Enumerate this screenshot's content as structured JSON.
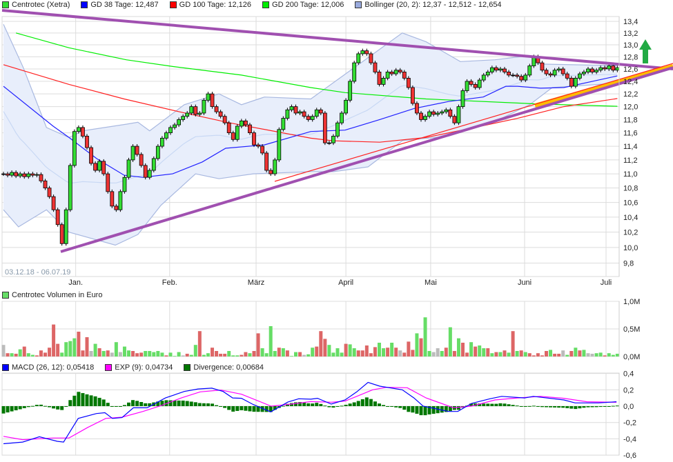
{
  "legend": {
    "price": [
      {
        "label": "Centrotec (Xetra)",
        "color": "#33dd33"
      },
      {
        "label": "GD 38 Tage: 12,487",
        "color": "#0000ff"
      },
      {
        "label": "GD 100 Tage: 12,126",
        "color": "#ff0000"
      },
      {
        "label": "GD 200 Tage: 12,006",
        "color": "#00ee00"
      },
      {
        "label": "Bollinger (20, 2): 12,37 - 12,512 - 12,654",
        "color": "#99aadd"
      }
    ],
    "volume": {
      "label": "Centrotec Volumen in Euro",
      "color": "#66dd66"
    },
    "macd": [
      {
        "label": "MACD (26, 12): 0,05418",
        "color": "#0000ff"
      },
      {
        "label": "EXP (9): 0,04734",
        "color": "#ff00ff"
      },
      {
        "label": "Divergence: 0,00684",
        "color": "#007700"
      }
    ]
  },
  "date_range": "03.12.18 - 06.07.19",
  "months": [
    {
      "label": "Jan.",
      "day": 17.3
    },
    {
      "label": "Feb.",
      "day": 39.8
    },
    {
      "label": "März",
      "day": 60.5
    },
    {
      "label": "April",
      "day": 82
    },
    {
      "label": "Mai",
      "day": 102.3
    },
    {
      "label": "Juni",
      "day": 124.8
    },
    {
      "label": "Juli",
      "day": 144.3
    }
  ],
  "colors": {
    "up": "#33dd33",
    "down": "#ee3333",
    "flat": "#bbbbbb",
    "trendline": "#a050b0",
    "signal_arrow": "#22aa44",
    "channel_fill": "#ffbb00"
  },
  "chart_data": [
    {
      "type": "candlestick",
      "scale": "log",
      "ylim": [
        9.8,
        13.4
      ],
      "y_ticks": [
        "13,4",
        "13,2",
        "13,0",
        "12,8",
        "12,6",
        "12,4",
        "12,2",
        "12,0",
        "11,8",
        "11,6",
        "11,4",
        "11,2",
        "11,0",
        "10,8",
        "10,6",
        "10,4",
        "10,2",
        "10,0",
        "9,8"
      ],
      "y_tick_values": [
        13.4,
        13.2,
        13.0,
        12.8,
        12.6,
        12.4,
        12.2,
        12.0,
        11.8,
        11.6,
        11.4,
        11.2,
        11.0,
        10.8,
        10.6,
        10.4,
        10.2,
        10.0,
        9.8
      ],
      "grid": true,
      "close": [
        11.0,
        10.98,
        11.02,
        10.97,
        11.0,
        10.96,
        11.0,
        10.98,
        10.99,
        10.9,
        10.8,
        10.68,
        10.5,
        10.3,
        10.05,
        10.5,
        11.12,
        11.62,
        11.68,
        11.55,
        11.38,
        11.15,
        11.05,
        11.18,
        11.0,
        10.75,
        10.55,
        10.5,
        10.75,
        10.95,
        11.2,
        11.4,
        11.28,
        11.12,
        10.95,
        11.05,
        11.22,
        11.4,
        11.52,
        11.6,
        11.68,
        11.72,
        11.8,
        11.85,
        11.9,
        12.0,
        11.88,
        11.9,
        12.1,
        12.2,
        12.0,
        11.92,
        11.85,
        11.75,
        11.6,
        11.5,
        11.7,
        11.78,
        11.72,
        11.6,
        11.42,
        11.4,
        11.3,
        11.05,
        11.0,
        11.2,
        11.65,
        11.82,
        11.95,
        12.0,
        11.9,
        11.92,
        11.85,
        11.8,
        11.85,
        11.95,
        11.9,
        11.45,
        11.45,
        11.55,
        11.75,
        11.9,
        12.1,
        12.4,
        12.7,
        12.85,
        12.9,
        12.85,
        12.7,
        12.55,
        12.35,
        12.45,
        12.55,
        12.52,
        12.58,
        12.55,
        12.45,
        12.3,
        12.05,
        11.9,
        11.8,
        11.85,
        11.92,
        11.88,
        11.9,
        11.92,
        11.95,
        11.85,
        11.75,
        12.0,
        12.25,
        12.4,
        12.35,
        12.3,
        12.42,
        12.5,
        12.55,
        12.62,
        12.58,
        12.6,
        12.55,
        12.5,
        12.5,
        12.48,
        12.42,
        12.5,
        12.65,
        12.8,
        12.7,
        12.58,
        12.52,
        12.5,
        12.58,
        12.6,
        12.52,
        12.45,
        12.32,
        12.45,
        12.52,
        12.55,
        12.6,
        12.55,
        12.58,
        12.62,
        12.6,
        12.65,
        12.58,
        12.62
      ],
      "gd38": [
        [
          0,
          12.32
        ],
        [
          11.9,
          11.7
        ],
        [
          15.7,
          11.53
        ],
        [
          22.3,
          11.22
        ],
        [
          28.9,
          10.98
        ],
        [
          33.4,
          10.95
        ],
        [
          40.5,
          11.0
        ],
        [
          47.6,
          11.17
        ],
        [
          53.2,
          11.37
        ],
        [
          62.5,
          11.42
        ],
        [
          73.6,
          11.62
        ],
        [
          81.8,
          11.64
        ],
        [
          90.1,
          11.8
        ],
        [
          98.3,
          11.97
        ],
        [
          106.6,
          12.08
        ],
        [
          114.9,
          12.15
        ],
        [
          120.3,
          12.32
        ],
        [
          123.1,
          12.32
        ],
        [
          128.6,
          12.29
        ],
        [
          134.2,
          12.3
        ],
        [
          147,
          12.487
        ]
      ],
      "gd100": [
        [
          0,
          12.67
        ],
        [
          15.7,
          12.35
        ],
        [
          28.9,
          12.12
        ],
        [
          42.1,
          11.92
        ],
        [
          54.2,
          11.75
        ],
        [
          73.6,
          11.52
        ],
        [
          79,
          11.48
        ],
        [
          90.1,
          11.46
        ],
        [
          101.2,
          11.53
        ],
        [
          112.1,
          11.67
        ],
        [
          123.1,
          11.82
        ],
        [
          134.2,
          12.0
        ],
        [
          147,
          12.126
        ]
      ],
      "gd200": [
        [
          3,
          13.2
        ],
        [
          15.7,
          12.95
        ],
        [
          29.4,
          12.75
        ],
        [
          40.5,
          12.64
        ],
        [
          57,
          12.5
        ],
        [
          73.6,
          12.3
        ],
        [
          81.8,
          12.22
        ],
        [
          101.2,
          12.12
        ],
        [
          128.6,
          12.04
        ],
        [
          147,
          12.006
        ]
      ],
      "bollinger_upper": [
        [
          0,
          13.35
        ],
        [
          4.7,
          12.63
        ],
        [
          10.3,
          11.68
        ],
        [
          15.7,
          11.53
        ],
        [
          19,
          11.63
        ],
        [
          29.4,
          11.73
        ],
        [
          32.2,
          11.76
        ],
        [
          35,
          11.63
        ],
        [
          43.3,
          12.03
        ],
        [
          51.6,
          12.2
        ],
        [
          57,
          12.03
        ],
        [
          62.5,
          12.15
        ],
        [
          73.6,
          12.12
        ],
        [
          95.5,
          13.2
        ],
        [
          101.2,
          13.05
        ],
        [
          109.4,
          12.72
        ],
        [
          117.7,
          12.75
        ],
        [
          126,
          12.82
        ],
        [
          128.6,
          12.68
        ],
        [
          147,
          12.654
        ]
      ],
      "bollinger_lower": [
        [
          0,
          10.5
        ],
        [
          3.6,
          10.27
        ],
        [
          10.3,
          10.5
        ],
        [
          15.7,
          10.2
        ],
        [
          26.8,
          10.03
        ],
        [
          32.2,
          10.17
        ],
        [
          37.7,
          10.56
        ],
        [
          46,
          11.0
        ],
        [
          51.6,
          10.93
        ],
        [
          59.8,
          11.0
        ],
        [
          73.6,
          11.03
        ],
        [
          79,
          11.03
        ],
        [
          87.3,
          11.1
        ],
        [
          95.5,
          11.48
        ],
        [
          106.6,
          11.55
        ],
        [
          117.7,
          11.77
        ],
        [
          126,
          12.03
        ],
        [
          131.4,
          12.3
        ],
        [
          147,
          12.37
        ]
      ]
    },
    {
      "type": "bar",
      "ylim": [
        0,
        1.0
      ],
      "y_ticks": [
        "1,0M",
        "0,5M",
        "0,0M"
      ],
      "y_tick_values": [
        1.0,
        0.5,
        0.0
      ],
      "values": [
        0.21,
        0.06,
        0.06,
        0.05,
        0.13,
        0.18,
        0.06,
        0.03,
        0.02,
        0.11,
        0.07,
        0.16,
        0.58,
        0.23,
        0.07,
        0.26,
        0.28,
        0.33,
        0.45,
        0.11,
        0.35,
        0.1,
        0.23,
        0.15,
        0.1,
        0.11,
        0.07,
        0.26,
        0.08,
        0.18,
        0.11,
        0.1,
        0.06,
        0.07,
        0.1,
        0.1,
        0.08,
        0.1,
        0.07,
        0.02,
        0.07,
        0.01,
        0.08,
        0.02,
        0.05,
        0.03,
        0.21,
        0.46,
        0.03,
        0.06,
        0.16,
        0.1,
        0.05,
        0.05,
        0.1,
        0.02,
        0.02,
        0.03,
        0.08,
        0.06,
        0.1,
        0.42,
        0.15,
        0.06,
        0.55,
        0.1,
        0.16,
        0.15,
        0.11,
        0.01,
        0.08,
        0.08,
        0.03,
        0.04,
        0.16,
        0.18,
        0.46,
        0.32,
        0.21,
        0.07,
        0.15,
        0.07,
        0.23,
        0.22,
        0.15,
        0.11,
        0.11,
        0.2,
        0.06,
        0.17,
        0.25,
        0.15,
        0.16,
        0.25,
        0.16,
        0.11,
        0.07,
        0.27,
        0.12,
        0.42,
        0.33,
        0.71,
        0.1,
        0.08,
        0.15,
        0.1,
        0.16,
        0.53,
        0.1,
        0.33,
        0.25,
        0.07,
        0.26,
        0.18,
        0.2,
        0.15,
        0.15,
        0.06,
        0.08,
        0.08,
        0.11,
        0.07,
        0.46,
        0.1,
        0.11,
        0.08,
        0.06,
        0.02,
        0.06,
        0.02,
        0.1,
        0.12,
        0.05,
        0.05,
        0.11,
        0.03,
        0.1,
        0.16,
        0.11,
        0.12,
        0.06,
        0.05,
        0.06,
        0.07,
        0.02,
        0.06,
        0.03,
        0.05
      ],
      "direction": [
        "n",
        "r",
        "g",
        "r",
        "g",
        "r",
        "g",
        "g",
        "r",
        "r",
        "r",
        "r",
        "r",
        "r",
        "g",
        "g",
        "g",
        "g",
        "r",
        "r",
        "r",
        "n",
        "g",
        "r",
        "g",
        "r",
        "n",
        "g",
        "n",
        "g",
        "g",
        "r",
        "r",
        "r",
        "g",
        "g",
        "g",
        "g",
        "g",
        "r",
        "g",
        "g",
        "g",
        "n",
        "r",
        "g",
        "g",
        "r",
        "g",
        "g",
        "r",
        "r",
        "r",
        "r",
        "g",
        "g",
        "g",
        "r",
        "r",
        "g",
        "r",
        "r",
        "g",
        "g",
        "g",
        "g",
        "r",
        "g",
        "r",
        "g",
        "g",
        "r",
        "n",
        "g",
        "g",
        "r",
        "r",
        "r",
        "g",
        "g",
        "g",
        "g",
        "r",
        "g",
        "g",
        "r",
        "r",
        "r",
        "r",
        "r",
        "g",
        "g",
        "r",
        "g",
        "r",
        "n",
        "r",
        "r",
        "r",
        "g",
        "r",
        "g",
        "g",
        "n",
        "n",
        "g",
        "r",
        "g",
        "r",
        "g",
        "r",
        "r",
        "g",
        "r",
        "g",
        "g",
        "r",
        "g",
        "r",
        "g",
        "r",
        "g",
        "r",
        "g",
        "r",
        "g",
        "r",
        "r",
        "r",
        "r",
        "r",
        "g",
        "r",
        "r",
        "n",
        "g",
        "r",
        "g",
        "r",
        "g",
        "n",
        "n",
        "g",
        "g",
        "r",
        "g",
        "g",
        "g"
      ]
    },
    {
      "type": "line",
      "ylim": [
        -0.6,
        0.4
      ],
      "y_ticks": [
        "0,4",
        "0,2",
        "0,0",
        "-0,2",
        "-0,4",
        "-0,6"
      ],
      "y_tick_values": [
        0.4,
        0.2,
        0.0,
        -0.2,
        -0.4,
        -0.6
      ],
      "macd": [
        [
          0,
          -0.46
        ],
        [
          4.6,
          -0.44
        ],
        [
          8.6,
          -0.375
        ],
        [
          12.9,
          -0.43
        ],
        [
          14.4,
          -0.44
        ],
        [
          17.9,
          -0.15
        ],
        [
          22.3,
          -0.09
        ],
        [
          24.3,
          -0.08
        ],
        [
          26.1,
          -0.15
        ],
        [
          28.4,
          -0.14
        ],
        [
          31.1,
          -0.02
        ],
        [
          34.4,
          -0.02
        ],
        [
          38.8,
          0.1
        ],
        [
          43.3,
          0.18
        ],
        [
          46.6,
          0.21
        ],
        [
          49.9,
          0.22
        ],
        [
          52.6,
          0.18
        ],
        [
          54.9,
          0.1
        ],
        [
          57,
          0.096
        ],
        [
          59.8,
          0.02
        ],
        [
          64,
          -0.07
        ],
        [
          68.1,
          0.05
        ],
        [
          70.7,
          0.09
        ],
        [
          73.6,
          0.085
        ],
        [
          75.2,
          0.096
        ],
        [
          78.5,
          0.025
        ],
        [
          81.8,
          0.076
        ],
        [
          84.6,
          0.175
        ],
        [
          87.3,
          0.29
        ],
        [
          90.1,
          0.245
        ],
        [
          95.5,
          0.2
        ],
        [
          98.3,
          0.1
        ],
        [
          100.5,
          0.0
        ],
        [
          106.6,
          -0.065
        ],
        [
          108.8,
          -0.065
        ],
        [
          112.1,
          0.034
        ],
        [
          116.5,
          0.09
        ],
        [
          119.3,
          0.12
        ],
        [
          124.8,
          0.1
        ],
        [
          126.9,
          0.12
        ],
        [
          134.2,
          0.076
        ],
        [
          136.9,
          0.04
        ],
        [
          142.5,
          0.04
        ],
        [
          146.8,
          0.054
        ]
      ],
      "exp": [
        [
          0,
          -0.37
        ],
        [
          4.6,
          -0.41
        ],
        [
          11.9,
          -0.39
        ],
        [
          15.7,
          -0.39
        ],
        [
          20.2,
          -0.26
        ],
        [
          24.5,
          -0.15
        ],
        [
          28.4,
          -0.135
        ],
        [
          33.4,
          -0.065
        ],
        [
          37.7,
          0.006
        ],
        [
          42.6,
          0.1
        ],
        [
          47.1,
          0.175
        ],
        [
          52.1,
          0.197
        ],
        [
          57,
          0.146
        ],
        [
          64.1,
          0.0
        ],
        [
          68.1,
          0.02
        ],
        [
          73.6,
          0.056
        ],
        [
          78.5,
          0.048
        ],
        [
          81.8,
          0.062
        ],
        [
          84.6,
          0.12
        ],
        [
          88.4,
          0.2
        ],
        [
          91.7,
          0.23
        ],
        [
          96.7,
          0.225
        ],
        [
          101.2,
          0.1
        ],
        [
          107.8,
          -0.02
        ],
        [
          112.1,
          0.0
        ],
        [
          117.7,
          0.076
        ],
        [
          123.1,
          0.1
        ],
        [
          128.6,
          0.12
        ],
        [
          134.2,
          0.096
        ],
        [
          139.7,
          0.054
        ],
        [
          146.8,
          0.047
        ]
      ]
    }
  ]
}
